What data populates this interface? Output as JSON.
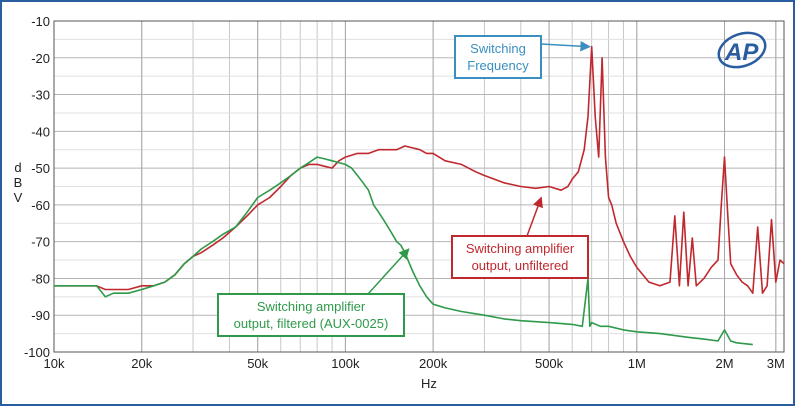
{
  "chart_data": {
    "type": "line",
    "xlabel": "Hz",
    "ylabel": "dBV",
    "xscale": "log",
    "xlim": [
      10000,
      3200000
    ],
    "ylim": [
      -100,
      -10
    ],
    "grid": true,
    "x_ticks": [
      {
        "value": 10000,
        "label": "10k"
      },
      {
        "value": 20000,
        "label": "20k"
      },
      {
        "value": 50000,
        "label": "50k"
      },
      {
        "value": 100000,
        "label": "100k"
      },
      {
        "value": 200000,
        "label": "200k"
      },
      {
        "value": 500000,
        "label": "500k"
      },
      {
        "value": 1000000,
        "label": "1M"
      },
      {
        "value": 2000000,
        "label": "2M"
      },
      {
        "value": 3000000,
        "label": "3M"
      }
    ],
    "y_ticks": [
      {
        "value": -10,
        "label": "-10"
      },
      {
        "value": -20,
        "label": "-20"
      },
      {
        "value": -30,
        "label": "-30"
      },
      {
        "value": -40,
        "label": "-40"
      },
      {
        "value": -50,
        "label": "-50"
      },
      {
        "value": -60,
        "label": "-60"
      },
      {
        "value": -70,
        "label": "-70"
      },
      {
        "value": -80,
        "label": "-80"
      },
      {
        "value": -90,
        "label": "-90"
      },
      {
        "value": -100,
        "label": "-100"
      }
    ],
    "series": [
      {
        "color": "#c0282e",
        "x": [
          10000,
          12000,
          14000,
          15000,
          16000,
          18000,
          20000,
          22000,
          24000,
          26000,
          28000,
          30000,
          32000,
          35000,
          38000,
          42000,
          46000,
          50000,
          55000,
          60000,
          65000,
          70000,
          75000,
          80000,
          85000,
          90000,
          95000,
          100000,
          110000,
          120000,
          130000,
          140000,
          150000,
          160000,
          170000,
          180000,
          190000,
          200000,
          220000,
          250000,
          280000,
          300000,
          350000,
          400000,
          450000,
          500000,
          550000,
          580000,
          600000,
          630000,
          660000,
          680000,
          700000,
          720000,
          740000,
          760000,
          780000,
          800000,
          820000,
          850000,
          900000,
          950000,
          1000000,
          1100000,
          1200000,
          1300000,
          1350000,
          1400000,
          1450000,
          1500000,
          1550000,
          1600000,
          1700000,
          1800000,
          1900000,
          1950000,
          2000000,
          2050000,
          2100000,
          2200000,
          2300000,
          2400000,
          2500000,
          2600000,
          2700000,
          2800000,
          2900000,
          3000000,
          3100000,
          3200000
        ],
        "y": [
          -82,
          -82,
          -82,
          -83,
          -83,
          -83,
          -82,
          -82,
          -81,
          -79,
          -76,
          -74,
          -73,
          -71,
          -69,
          -66,
          -63,
          -60,
          -58,
          -55,
          -52,
          -50,
          -49,
          -49,
          -49.5,
          -50,
          -48,
          -47,
          -46,
          -46,
          -45,
          -45,
          -45,
          -44,
          -44.5,
          -45,
          -46,
          -46,
          -48,
          -49,
          -51,
          -52,
          -54,
          -55,
          -55.5,
          -55,
          -56,
          -55,
          -53,
          -51,
          -45,
          -36,
          -17,
          -36,
          -47,
          -20,
          -47,
          -58,
          -60,
          -65,
          -70,
          -74,
          -77,
          -81,
          -82,
          -81,
          -63,
          -82,
          -62,
          -82,
          -69,
          -82,
          -80,
          -77,
          -75,
          -60,
          -47,
          -62,
          -76,
          -79,
          -81,
          -82,
          -84,
          -66,
          -84,
          -82,
          -64,
          -81,
          -75,
          -76
        ]
      },
      {
        "color": "#2e9a4a",
        "x": [
          10000,
          12000,
          14000,
          15000,
          16000,
          18000,
          20000,
          22000,
          24000,
          26000,
          28000,
          30000,
          32000,
          35000,
          38000,
          42000,
          46000,
          50000,
          55000,
          60000,
          65000,
          70000,
          75000,
          80000,
          85000,
          90000,
          95000,
          100000,
          105000,
          110000,
          115000,
          120000,
          125000,
          130000,
          135000,
          140000,
          145000,
          150000,
          155000,
          160000,
          170000,
          180000,
          190000,
          200000,
          220000,
          250000,
          300000,
          350000,
          400000,
          500000,
          600000,
          650000,
          680000,
          690000,
          700000,
          750000,
          800000,
          900000,
          1000000,
          1200000,
          1500000,
          1700000,
          1900000,
          2000000,
          2100000,
          2200000,
          2500000
        ],
        "y": [
          -82,
          -82,
          -82,
          -85,
          -84,
          -84,
          -83,
          -82,
          -81,
          -79,
          -76,
          -74,
          -72,
          -70,
          -68,
          -66,
          -62,
          -58,
          -56,
          -54,
          -52,
          -50,
          -48.5,
          -47,
          -47.5,
          -48,
          -48.5,
          -49,
          -50,
          -52,
          -54,
          -56,
          -60,
          -62,
          -64,
          -66,
          -68,
          -70,
          -71,
          -73,
          -78,
          -82,
          -85,
          -87,
          -88,
          -89,
          -90,
          -91,
          -91.5,
          -92,
          -92.5,
          -93,
          -80,
          -93,
          -92,
          -93,
          -93,
          -94,
          -94.5,
          -95,
          -96,
          -96.5,
          -97,
          -94,
          -97,
          -97.5,
          -98
        ]
      }
    ],
    "annotations": [
      {
        "text": [
          "Switching",
          "Frequency"
        ],
        "color": "#3a8fc0",
        "points_to": {
          "x": 690000,
          "y": -17
        }
      },
      {
        "text": [
          "Switching amplifier",
          "output, unfiltered"
        ],
        "color": "#c0282e",
        "points_to": {
          "x": 470000,
          "y": -58
        }
      },
      {
        "text": [
          "Switching amplifier",
          "output, filtered (AUX-0025)"
        ],
        "color": "#2e9a4a",
        "points_to": {
          "x": 165000,
          "y": -72
        }
      }
    ],
    "logo_text": "AP"
  }
}
